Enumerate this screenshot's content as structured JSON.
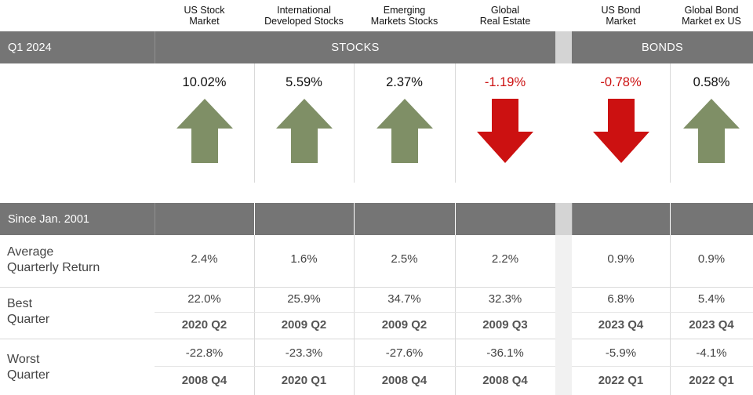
{
  "columns": [
    {
      "key": "us_stock",
      "header": [
        "US Stock",
        "Market"
      ],
      "group": "stocks"
    },
    {
      "key": "intl_dev",
      "header": [
        "International",
        "Developed Stocks"
      ],
      "group": "stocks"
    },
    {
      "key": "em",
      "header": [
        "Emerging",
        "Markets Stocks"
      ],
      "group": "stocks"
    },
    {
      "key": "reit",
      "header": [
        "Global",
        "Real Estate"
      ],
      "group": "stocks"
    },
    {
      "key": "us_bond",
      "header": [
        "US Bond",
        "Market"
      ],
      "group": "bonds"
    },
    {
      "key": "gbl_bond",
      "header": [
        "Global Bond",
        "Market ex US"
      ],
      "group": "bonds"
    }
  ],
  "top_bar": {
    "period_label": "Q1 2024",
    "stocks_label": "STOCKS",
    "bonds_label": "BONDS"
  },
  "second_bar": {
    "period_label": "Since Jan. 2001"
  },
  "row_labels": {
    "average": [
      "Average",
      "Quarterly Return"
    ],
    "best": [
      "Best",
      "Quarter"
    ],
    "worst": [
      "Worst",
      "Quarter"
    ]
  },
  "colors": {
    "up": "#7f8f66",
    "down": "#cc1111",
    "bar": "#757575",
    "gap": "#d4d4d4"
  },
  "chart_data": {
    "type": "table",
    "title": "Q1 2024",
    "categories": [
      "US Stock Market",
      "International Developed Stocks",
      "Emerging Markets Stocks",
      "Global Real Estate",
      "US Bond Market",
      "Global Bond Market ex US"
    ],
    "q1_2024_returns": [
      "10.02%",
      "5.59%",
      "2.37%",
      "-1.19%",
      "-0.78%",
      "0.58%"
    ],
    "q1_2024_direction": [
      "up",
      "up",
      "up",
      "down",
      "down",
      "up"
    ],
    "average_quarterly_return": [
      "2.4%",
      "1.6%",
      "2.5%",
      "2.2%",
      "0.9%",
      "0.9%"
    ],
    "best_quarter_value": [
      "22.0%",
      "25.9%",
      "34.7%",
      "32.3%",
      "6.8%",
      "5.4%"
    ],
    "best_quarter_period": [
      "2020 Q2",
      "2009 Q2",
      "2009 Q2",
      "2009 Q3",
      "2023 Q4",
      "2023 Q4"
    ],
    "worst_quarter_value": [
      "-22.8%",
      "-23.3%",
      "-27.6%",
      "-36.1%",
      "-5.9%",
      "-4.1%"
    ],
    "worst_quarter_period": [
      "2008 Q4",
      "2020 Q1",
      "2008 Q4",
      "2008 Q4",
      "2022 Q1",
      "2022 Q1"
    ]
  }
}
